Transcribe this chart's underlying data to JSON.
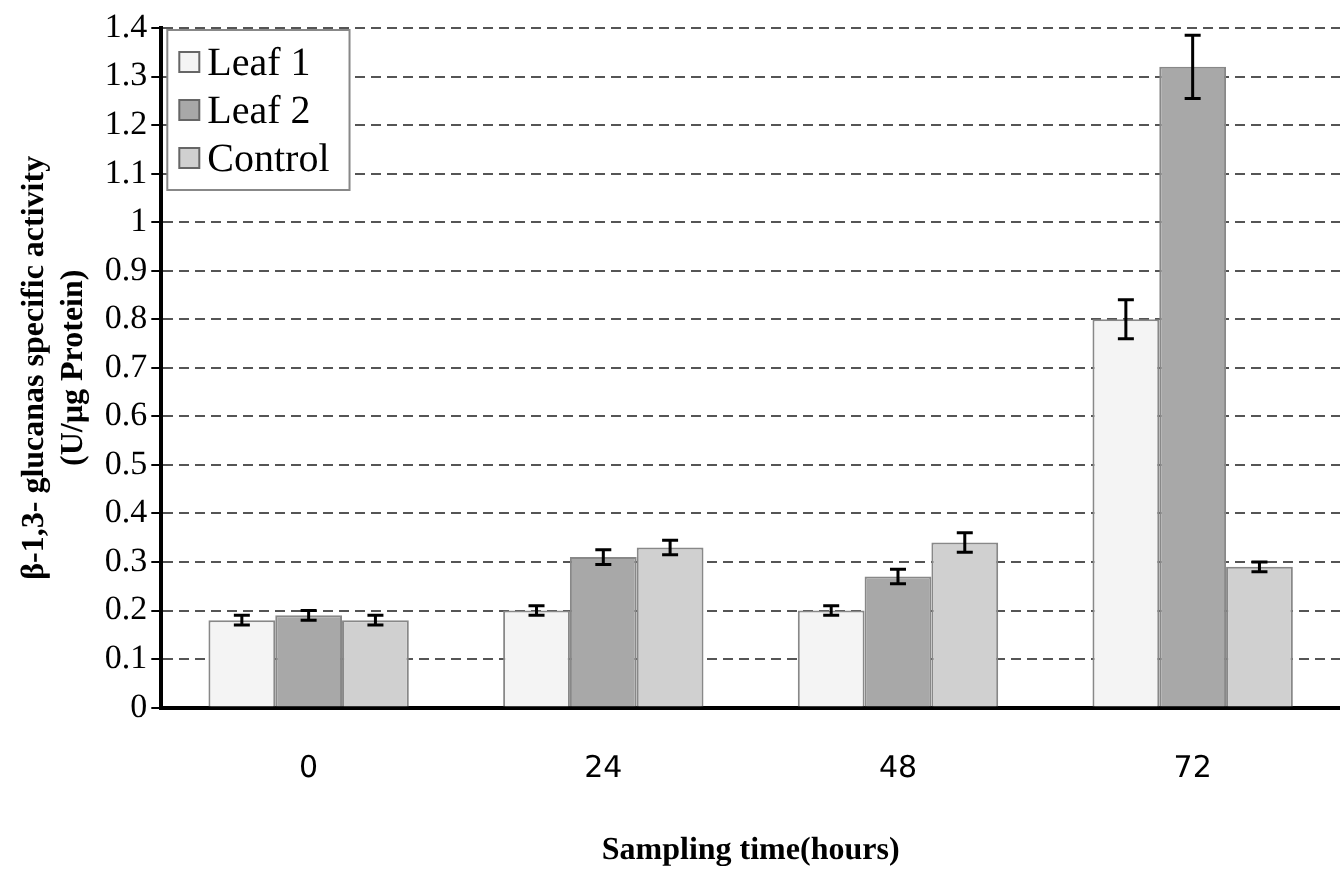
{
  "chart_data": {
    "type": "bar",
    "xlabel": "Sampling time(hours)",
    "ylabel": "β-1,3- glucanas specific activity\n(U/µg Protein)",
    "categories": [
      "0",
      "24",
      "48",
      "72"
    ],
    "series": [
      {
        "name": "Leaf 1",
        "color": "#f4f4f4",
        "values": [
          0.18,
          0.2,
          0.2,
          0.8
        ],
        "errors": [
          0.01,
          0.01,
          0.01,
          0.04
        ]
      },
      {
        "name": "Leaf 2",
        "color": "#a8a8a8",
        "values": [
          0.19,
          0.31,
          0.27,
          1.32
        ],
        "errors": [
          0.01,
          0.015,
          0.015,
          0.065
        ]
      },
      {
        "name": "Control",
        "color": "#d0d0d0",
        "values": [
          0.18,
          0.33,
          0.34,
          0.29
        ],
        "errors": [
          0.01,
          0.015,
          0.02,
          0.01
        ]
      }
    ],
    "ylim": [
      0,
      1.4
    ],
    "yticks": [
      0,
      0.1,
      0.2,
      0.3,
      0.4,
      0.5,
      0.6,
      0.7,
      0.8,
      0.9,
      1,
      1.1,
      1.2,
      1.3,
      1.4
    ],
    "grid": "y",
    "legend": "top left"
  }
}
